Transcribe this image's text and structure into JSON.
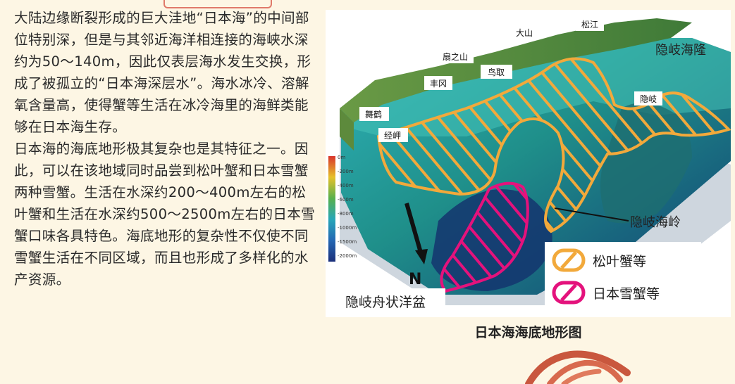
{
  "article": {
    "paragraphs": [
      "大陆边缘断裂形成的巨大洼地“日本海”的中间部位特别深，但是与其邻近海洋相连接的海峡水深约为50～140m，因此仅表层海水发生交换，形成了被孤立的“日本海深层水”。海水冰冷、溶解氧含量高，使得蟹等生活在冰冷海里的海鲜类能够在日本海生存。",
      "日本海的海底地形极其复杂也是其特征之一。因此，可以在该地域同时品尝到松叶蟹和日本雪蟹两种雪蟹。生活在水深约200～400m左右的松叶蟹和生活在水深约500～2500m左右的日本雪蟹口味各具特色。海底地形的复杂性不仅使不同雪蟹生活在不同区域，而且也形成了多样化的水产资源。"
    ]
  },
  "map": {
    "caption": "日本海海底地形图",
    "places": {
      "daisen": "大山",
      "matsue": "松江",
      "senoyama": "扇之山",
      "tottori": "鸟取",
      "toyooka": "丰冈",
      "maizuru": "舞鹤",
      "kyogamisaki": "经岬",
      "oki": "隐岐"
    },
    "features": {
      "oki_ridge": "隐岐海隆",
      "oki_spur": "隐岐海岭",
      "oki_trough": "隐岐舟状洋盆"
    },
    "north_label": "N",
    "depth_scale": [
      "0m",
      "-200m",
      "-400m",
      "-600m",
      "-800m",
      "-1000m",
      "-1500m",
      "-2000m"
    ],
    "legend": [
      {
        "label": "松叶蟹等",
        "color": "#f2a93b"
      },
      {
        "label": "日本雪蟹等",
        "color": "#e4127c"
      }
    ]
  }
}
